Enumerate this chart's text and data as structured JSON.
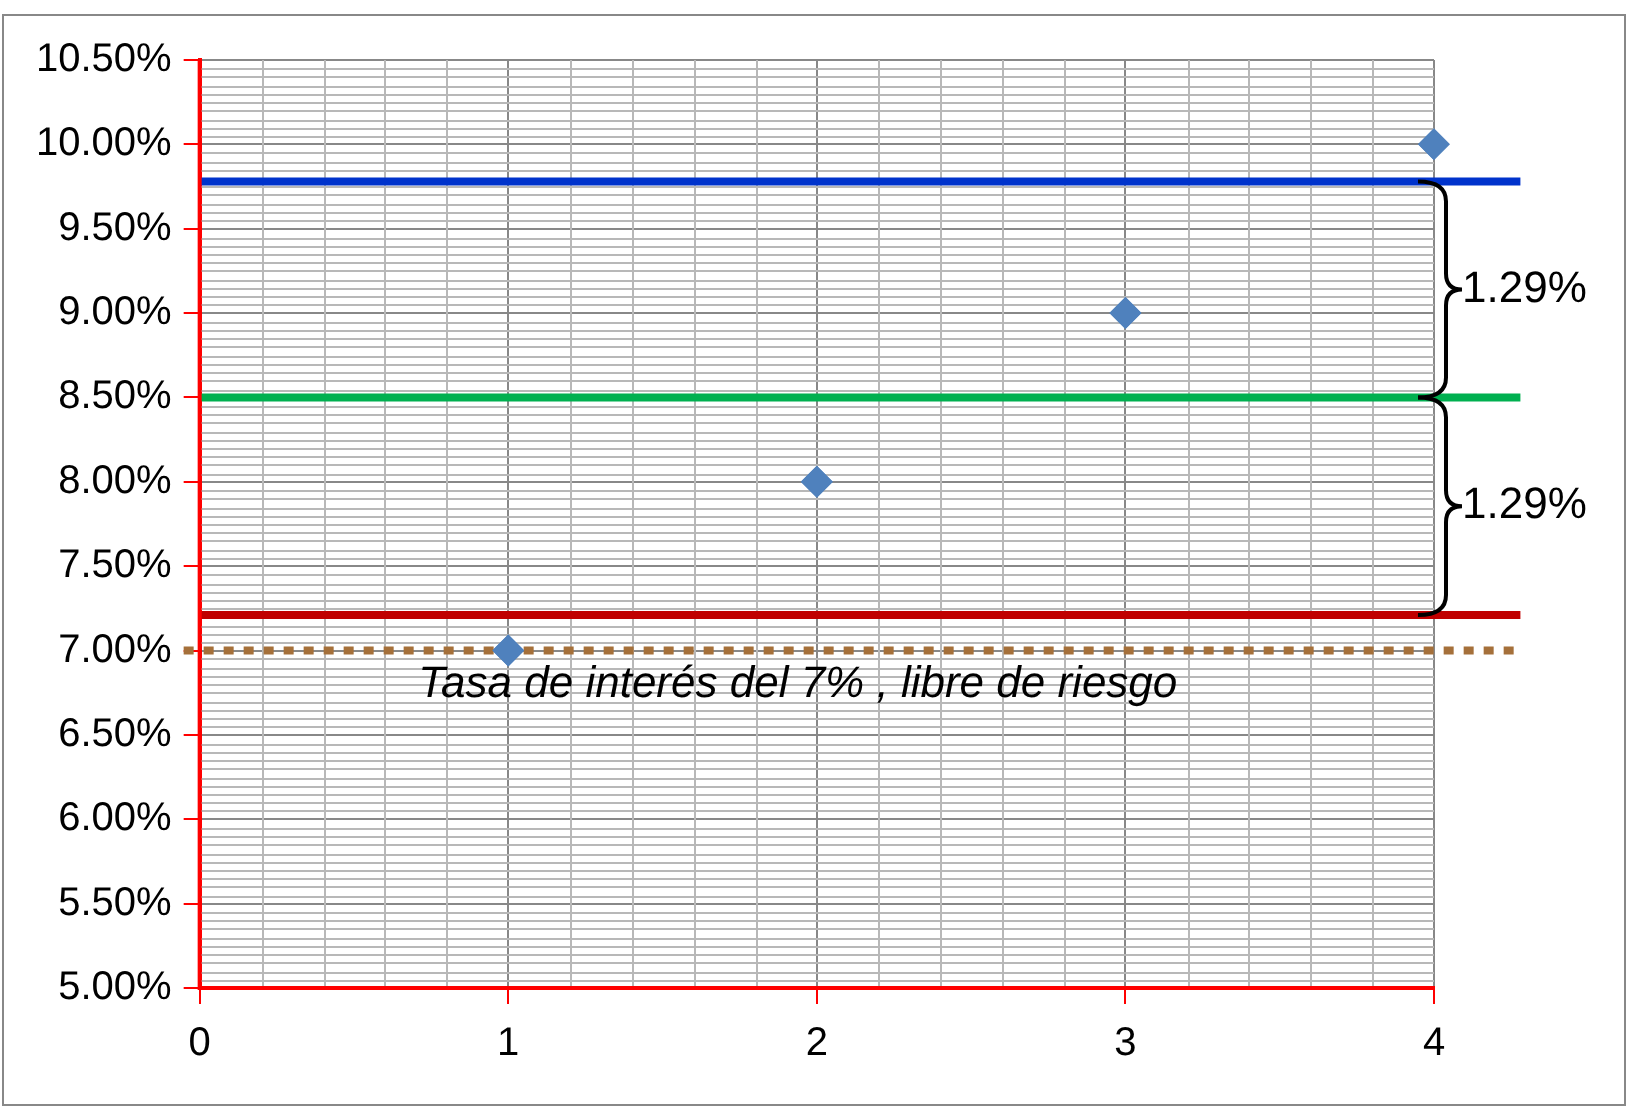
{
  "chart_data": {
    "type": "scatter",
    "x": [
      1,
      2,
      3,
      4
    ],
    "series": [
      {
        "color": "#4f81bd",
        "values": [
          7,
          8,
          9,
          10
        ]
      }
    ],
    "marker": "diamond",
    "xlim": [
      0,
      4
    ],
    "xticks": [
      0,
      1,
      2,
      3,
      4
    ],
    "ylim": [
      5,
      10.5
    ],
    "yticks": [
      {
        "value": 5,
        "label": "5.00%"
      },
      {
        "value": 5.5,
        "label": "5.50%"
      },
      {
        "value": 6,
        "label": "6.00%"
      },
      {
        "value": 6.5,
        "label": "6.50%"
      },
      {
        "value": 7,
        "label": "7.00%"
      },
      {
        "value": 7.5,
        "label": "7.50%"
      },
      {
        "value": 8,
        "label": "8.00%"
      },
      {
        "value": 8.5,
        "label": "8.50%"
      },
      {
        "value": 9,
        "label": "9.00%"
      },
      {
        "value": 9.5,
        "label": "9.50%"
      },
      {
        "value": 10,
        "label": "10.00%"
      },
      {
        "value": 10.5,
        "label": "10.50%"
      }
    ],
    "grid": true,
    "legend": false,
    "ref_lines": [
      {
        "axis": "y",
        "value": 9.78,
        "color": "#0033cc",
        "line_style": "solid"
      },
      {
        "axis": "y",
        "value": 8.5,
        "color": "#00b050",
        "line_style": "solid"
      },
      {
        "axis": "y",
        "value": 7.21,
        "color": "#c00000",
        "line_style": "solid"
      },
      {
        "axis": "y",
        "value": 7,
        "color": "#a5703a",
        "line_style": "dotted",
        "label": "Tasa de interés del 7% , libre de riesgo"
      }
    ],
    "annotations": [
      {
        "text": "1.29%",
        "x": 4,
        "y": 9.78
      },
      {
        "text": "1.29%",
        "x": 4,
        "y": 8.5
      }
    ]
  }
}
